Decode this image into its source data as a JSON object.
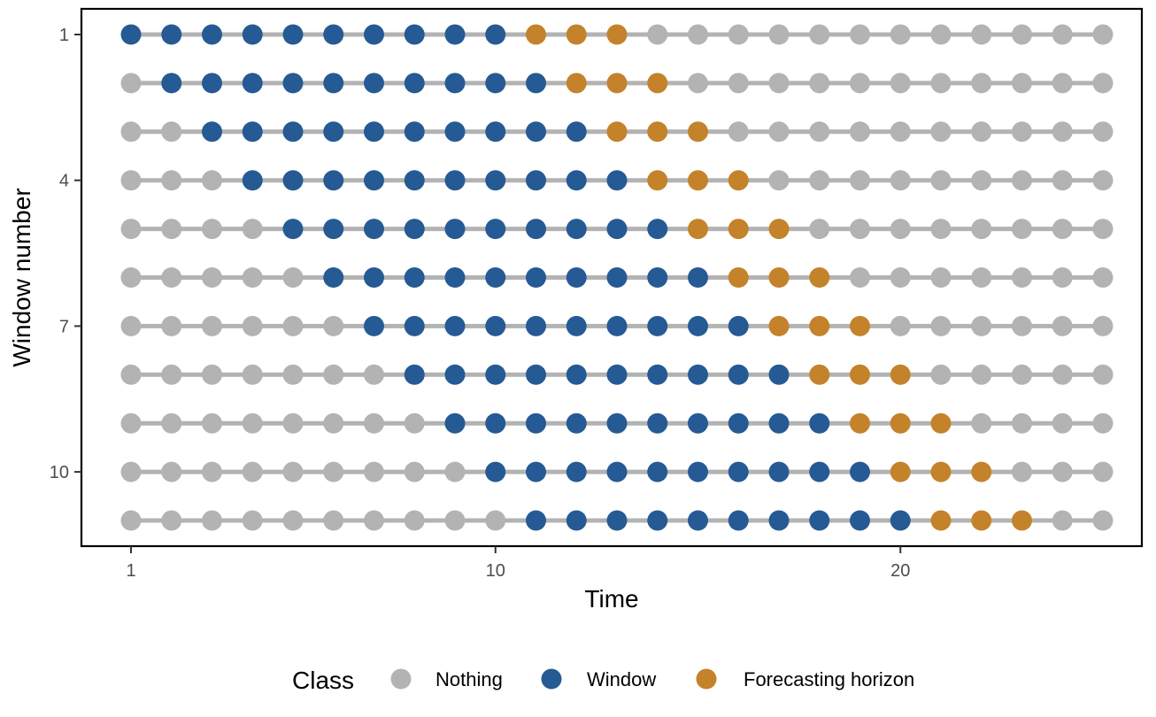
{
  "chart_data": {
    "type": "scatter",
    "title": "",
    "xlabel": "Time",
    "ylabel": "Window number",
    "x_range": [
      1,
      25
    ],
    "y_range": [
      1,
      11
    ],
    "y_reversed": true,
    "x_ticks": [
      "1",
      "10",
      "20"
    ],
    "x_tick_values": [
      1,
      10,
      20
    ],
    "y_ticks": [
      "1",
      "4",
      "7",
      "10"
    ],
    "y_tick_values": [
      1,
      4,
      7,
      10
    ],
    "grid": false,
    "connect_points": true,
    "legend": {
      "title": "Class",
      "position": "bottom",
      "entries": [
        "Nothing",
        "Window",
        "Forecasting horizon"
      ]
    },
    "colors": {
      "Nothing": "#b3b3b3",
      "Window": "#255a94",
      "Forecasting horizon": "#c4822a",
      "line": "#b3b3b3"
    },
    "windows": [
      {
        "window": 1,
        "window_start": 1,
        "window_end": 10,
        "horizon_start": 11,
        "horizon_end": 13
      },
      {
        "window": 2,
        "window_start": 2,
        "window_end": 11,
        "horizon_start": 12,
        "horizon_end": 14
      },
      {
        "window": 3,
        "window_start": 3,
        "window_end": 12,
        "horizon_start": 13,
        "horizon_end": 15
      },
      {
        "window": 4,
        "window_start": 4,
        "window_end": 13,
        "horizon_start": 14,
        "horizon_end": 16
      },
      {
        "window": 5,
        "window_start": 5,
        "window_end": 14,
        "horizon_start": 15,
        "horizon_end": 17
      },
      {
        "window": 6,
        "window_start": 6,
        "window_end": 15,
        "horizon_start": 16,
        "horizon_end": 18
      },
      {
        "window": 7,
        "window_start": 7,
        "window_end": 16,
        "horizon_start": 17,
        "horizon_end": 19
      },
      {
        "window": 8,
        "window_start": 8,
        "window_end": 17,
        "horizon_start": 18,
        "horizon_end": 20
      },
      {
        "window": 9,
        "window_start": 9,
        "window_end": 18,
        "horizon_start": 19,
        "horizon_end": 21
      },
      {
        "window": 10,
        "window_start": 10,
        "window_end": 19,
        "horizon_start": 20,
        "horizon_end": 22
      },
      {
        "window": 11,
        "window_start": 11,
        "window_end": 20,
        "horizon_start": 21,
        "horizon_end": 23
      }
    ]
  }
}
